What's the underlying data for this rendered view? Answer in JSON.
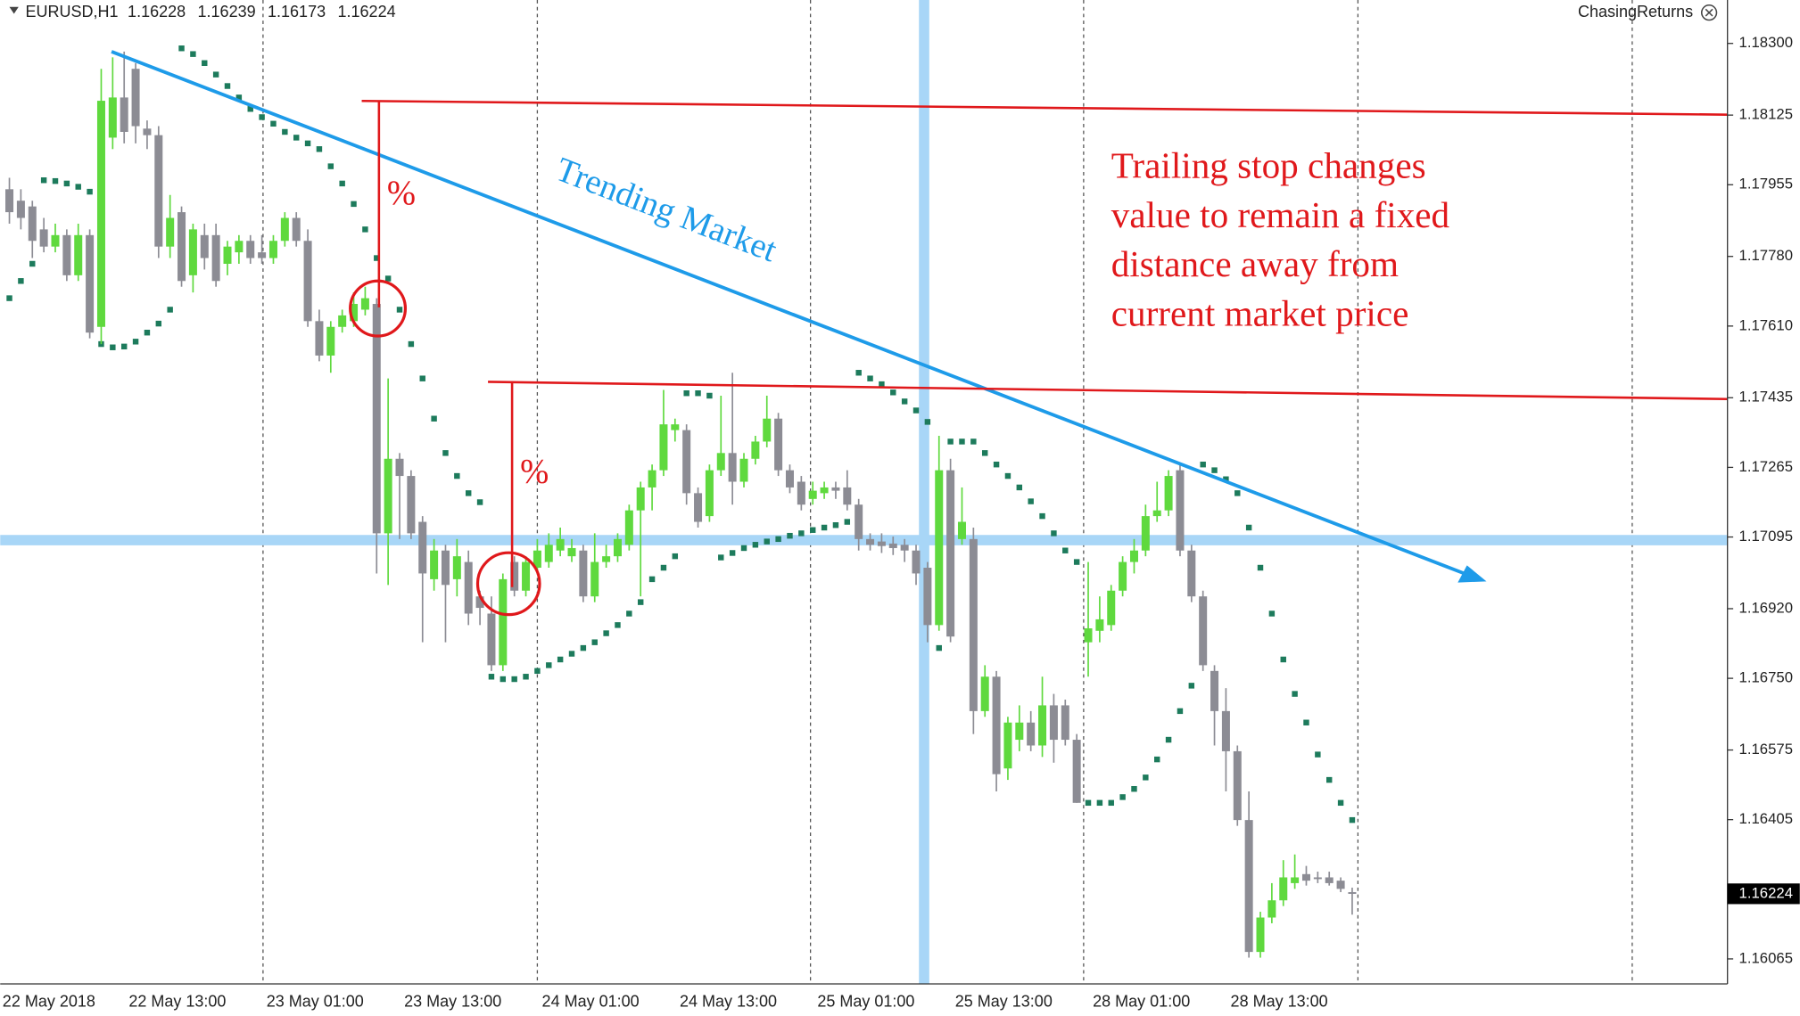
{
  "header": {
    "symbol": "EURUSD,H1",
    "prices": [
      "1.16228",
      "1.16239",
      "1.16173",
      "1.16224"
    ],
    "indicator": "ChasingReturns"
  },
  "annotations": {
    "trend_label": "Trending Market",
    "percent_1": "%",
    "percent_2": "%",
    "note": [
      "Trailing stop changes",
      "value to remain a fixed",
      "distance away from",
      "current market price"
    ]
  },
  "chart_data": {
    "type": "candlestick",
    "categories": [
      "22 May 2018",
      null,
      null,
      null,
      null,
      null,
      null,
      null,
      null,
      null,
      null,
      "22 May 13:00",
      null,
      null,
      null,
      null,
      null,
      null,
      null,
      null,
      null,
      null,
      null,
      "23 May 01:00",
      null,
      null,
      null,
      null,
      null,
      null,
      null,
      null,
      null,
      null,
      null,
      "23 May 13:00",
      null,
      null,
      null,
      null,
      null,
      null,
      null,
      null,
      null,
      null,
      null,
      "24 May 01:00",
      null,
      null,
      null,
      null,
      null,
      null,
      null,
      null,
      null,
      null,
      null,
      "24 May 13:00",
      null,
      null,
      null,
      null,
      null,
      null,
      null,
      null,
      null,
      null,
      null,
      "25 May 01:00",
      null,
      null,
      null,
      null,
      null,
      null,
      null,
      null,
      null,
      null,
      null,
      "25 May 13:00",
      null,
      null,
      null,
      null,
      null,
      null,
      null,
      null,
      null,
      null,
      null,
      "28 May 01:00",
      null,
      null,
      null,
      null,
      null,
      null,
      null,
      null,
      null,
      null,
      null,
      "28 May 13:00",
      null,
      null,
      null,
      null,
      null,
      null,
      null,
      null,
      null,
      null
    ],
    "up_color": "#5fd93e",
    "down_color": "#8c8c94",
    "ohlc": [
      [
        1.17944,
        1.17972,
        1.1786,
        1.17888
      ],
      [
        1.17916,
        1.17944,
        1.17846,
        1.17874
      ],
      [
        1.17902,
        1.17916,
        1.17776,
        1.17818
      ],
      [
        1.17846,
        1.17874,
        1.1779,
        1.17804
      ],
      [
        1.17804,
        1.1786,
        1.1779,
        1.17832
      ],
      [
        1.17832,
        1.17846,
        1.1772,
        1.17734
      ],
      [
        1.17734,
        1.1786,
        1.1772,
        1.17832
      ],
      [
        1.17832,
        1.17846,
        1.1758,
        1.17594
      ],
      [
        1.17608,
        1.18238,
        1.17566,
        1.1816
      ],
      [
        1.1807,
        1.18266,
        1.18042,
        1.18168
      ],
      [
        1.18168,
        1.1828,
        1.18056,
        1.18084
      ],
      [
        1.18238,
        1.18252,
        1.18056,
        1.18098
      ],
      [
        1.18092,
        1.18112,
        1.18042,
        1.18076
      ],
      [
        1.18076,
        1.18098,
        1.17776,
        1.17804
      ],
      [
        1.17804,
        1.1793,
        1.17776,
        1.17874
      ],
      [
        1.17888,
        1.17902,
        1.17706,
        1.1772
      ],
      [
        1.17734,
        1.1786,
        1.17692,
        1.17846
      ],
      [
        1.17832,
        1.1786,
        1.17748,
        1.17776
      ],
      [
        1.17832,
        1.1786,
        1.17706,
        1.1772
      ],
      [
        1.17762,
        1.17818,
        1.17734,
        1.17804
      ],
      [
        1.1779,
        1.17832,
        1.17762,
        1.17818
      ],
      [
        1.17818,
        1.17832,
        1.17762,
        1.17776
      ],
      [
        1.1779,
        1.17832,
        1.17762,
        1.17776
      ],
      [
        1.17776,
        1.17832,
        1.17762,
        1.17818
      ],
      [
        1.17818,
        1.17888,
        1.17804,
        1.17874
      ],
      [
        1.17874,
        1.17888,
        1.17804,
        1.17818
      ],
      [
        1.17818,
        1.17846,
        1.17608,
        1.17622
      ],
      [
        1.17622,
        1.1765,
        1.17524,
        1.17538
      ],
      [
        1.17538,
        1.17622,
        1.17496,
        1.17608
      ],
      [
        1.17608,
        1.1765,
        1.17594,
        1.17636
      ],
      [
        1.17622,
        1.17692,
        1.17608,
        1.17664
      ],
      [
        1.1765,
        1.17706,
        1.17636,
        1.17678
      ],
      [
        1.17664,
        1.17678,
        1.17006,
        1.17104
      ],
      [
        1.17104,
        1.17482,
        1.16978,
        1.17286
      ],
      [
        1.17286,
        1.173,
        1.1709,
        1.17244
      ],
      [
        1.17244,
        1.17258,
        1.1709,
        1.17104
      ],
      [
        1.17132,
        1.17146,
        1.16838,
        1.17006
      ],
      [
        1.16992,
        1.1709,
        1.16964,
        1.17062
      ],
      [
        1.17062,
        1.17076,
        1.16838,
        1.16978
      ],
      [
        1.16992,
        1.1709,
        1.1695,
        1.17048
      ],
      [
        1.17034,
        1.17062,
        1.1688,
        1.16908
      ],
      [
        1.1695,
        1.16964,
        1.1688,
        1.16922
      ],
      [
        1.16908,
        1.1695,
        1.16768,
        1.16782
      ],
      [
        1.16782,
        1.17006,
        1.16768,
        1.16992
      ],
      [
        1.17034,
        1.17048,
        1.1695,
        1.16964
      ],
      [
        1.16964,
        1.17048,
        1.1695,
        1.17034
      ],
      [
        1.1702,
        1.1709,
        1.17006,
        1.17062
      ],
      [
        1.17034,
        1.17104,
        1.1702,
        1.17076
      ],
      [
        1.17062,
        1.17118,
        1.17048,
        1.1709
      ],
      [
        1.17048,
        1.1709,
        1.17034,
        1.17068
      ],
      [
        1.17062,
        1.17076,
        1.16936,
        1.1695
      ],
      [
        1.1695,
        1.17104,
        1.16936,
        1.17034
      ],
      [
        1.17034,
        1.17076,
        1.1702,
        1.17048
      ],
      [
        1.17048,
        1.17104,
        1.17034,
        1.1709
      ],
      [
        1.17076,
        1.17174,
        1.17062,
        1.1716
      ],
      [
        1.1716,
        1.1723,
        1.1695,
        1.17216
      ],
      [
        1.17216,
        1.17272,
        1.1716,
        1.17258
      ],
      [
        1.17258,
        1.17454,
        1.17244,
        1.1737
      ],
      [
        1.17356,
        1.17384,
        1.17328,
        1.1737
      ],
      [
        1.17356,
        1.1737,
        1.17174,
        1.17202
      ],
      [
        1.17202,
        1.17216,
        1.17118,
        1.17132
      ],
      [
        1.17146,
        1.17272,
        1.17132,
        1.17258
      ],
      [
        1.17258,
        1.1744,
        1.17244,
        1.173
      ],
      [
        1.173,
        1.17496,
        1.17174,
        1.1723
      ],
      [
        1.1723,
        1.173,
        1.17216,
        1.17286
      ],
      [
        1.17286,
        1.17342,
        1.17272,
        1.17328
      ],
      [
        1.17328,
        1.1744,
        1.17314,
        1.17384
      ],
      [
        1.17384,
        1.17398,
        1.17244,
        1.17258
      ],
      [
        1.17258,
        1.17272,
        1.17202,
        1.17216
      ],
      [
        1.1723,
        1.17244,
        1.1716,
        1.17174
      ],
      [
        1.17188,
        1.1723,
        1.17174,
        1.17208
      ],
      [
        1.17202,
        1.1723,
        1.17188,
        1.17216
      ],
      [
        1.17216,
        1.1723,
        1.17188,
        1.17208
      ],
      [
        1.17216,
        1.17258,
        1.1716,
        1.17174
      ],
      [
        1.17174,
        1.17188,
        1.17062,
        1.1709
      ],
      [
        1.1709,
        1.17104,
        1.17062,
        1.17076
      ],
      [
        1.17084,
        1.17104,
        1.17056,
        1.17073
      ],
      [
        1.17079,
        1.17096,
        1.17051,
        1.17068
      ],
      [
        1.17076,
        1.1709,
        1.17034,
        1.17062
      ],
      [
        1.17062,
        1.17076,
        1.16978,
        1.17006
      ],
      [
        1.1702,
        1.17034,
        1.16838,
        1.1688
      ],
      [
        1.1688,
        1.17342,
        1.16866,
        1.17258
      ],
      [
        1.17258,
        1.17286,
        1.16838,
        1.16852
      ],
      [
        1.1709,
        1.17216,
        1.17076,
        1.17132
      ],
      [
        1.1709,
        1.17118,
        1.16614,
        1.1667
      ],
      [
        1.1667,
        1.16782,
        1.16656,
        1.16754
      ],
      [
        1.16754,
        1.16768,
        1.16474,
        1.16516
      ],
      [
        1.1653,
        1.16656,
        1.16502,
        1.16642
      ],
      [
        1.166,
        1.16684,
        1.16572,
        1.16642
      ],
      [
        1.16642,
        1.1667,
        1.16572,
        1.16586
      ],
      [
        1.16586,
        1.16754,
        1.16558,
        1.16684
      ],
      [
        1.16684,
        1.16712,
        1.16544,
        1.166
      ],
      [
        1.16684,
        1.16698,
        1.16586,
        1.166
      ],
      [
        1.166,
        1.16614,
        1.16446,
        1.16446
      ],
      [
        1.16838,
        1.17034,
        1.16754,
        1.16872
      ],
      [
        1.16866,
        1.1695,
        1.16838,
        1.16894
      ],
      [
        1.1688,
        1.16978,
        1.16866,
        1.16964
      ],
      [
        1.16964,
        1.17048,
        1.1695,
        1.17034
      ],
      [
        1.17034,
        1.1709,
        1.17006,
        1.17062
      ],
      [
        1.17062,
        1.17174,
        1.17048,
        1.17146
      ],
      [
        1.17146,
        1.1723,
        1.17132,
        1.1716
      ],
      [
        1.1716,
        1.17258,
        1.17146,
        1.17244
      ],
      [
        1.17258,
        1.17272,
        1.17048,
        1.17062
      ],
      [
        1.17062,
        1.17076,
        1.16936,
        1.1695
      ],
      [
        1.1695,
        1.16964,
        1.16768,
        1.16782
      ],
      [
        1.16768,
        1.16782,
        1.16586,
        1.1667
      ],
      [
        1.1667,
        1.16726,
        1.16474,
        1.16572
      ],
      [
        1.16572,
        1.16586,
        1.1639,
        1.16404
      ],
      [
        1.16404,
        1.16474,
        1.16068,
        1.16082
      ],
      [
        1.16082,
        1.1618,
        1.16068,
        1.16166
      ],
      [
        1.16166,
        1.1625,
        1.16152,
        1.16208
      ],
      [
        1.16208,
        1.16306,
        1.16194,
        1.16264
      ],
      [
        1.1625,
        1.1632,
        1.16236,
        1.16264
      ],
      [
        1.16272,
        1.16292,
        1.16244,
        1.16256
      ],
      [
        1.16264,
        1.16278,
        1.1625,
        1.16261
      ],
      [
        1.16264,
        1.16278,
        1.16244,
        1.1625
      ],
      [
        1.16256,
        1.16264,
        1.16228,
        1.16236
      ],
      [
        1.16228,
        1.16239,
        1.16173,
        1.16224
      ]
    ],
    "sar": {
      "color": "#1d7b5c",
      "values": [
        1.17678,
        1.1772,
        1.17762,
        1.17966,
        1.17964,
        1.17958,
        1.1795,
        1.17938,
        1.17566,
        1.17558,
        1.1756,
        1.17572,
        1.17594,
        1.17616,
        1.1765,
        1.18288,
        1.18274,
        1.18252,
        1.18224,
        1.18196,
        1.18168,
        1.1814,
        1.1812,
        1.18104,
        1.18084,
        1.1807,
        1.18056,
        1.18042,
        1.18,
        1.17958,
        1.17908,
        1.17846,
        1.17776,
        1.17726,
        1.1765,
        1.17566,
        1.17482,
        1.17384,
        1.173,
        1.17244,
        1.17202,
        1.1718,
        1.16754,
        1.16748,
        1.16748,
        1.16754,
        1.16768,
        1.16782,
        1.16796,
        1.1681,
        1.16824,
        1.16838,
        1.1686,
        1.1688,
        1.16908,
        1.16936,
        1.16992,
        1.1702,
        1.17048,
        1.17446,
        1.17446,
        1.1744,
        1.17045,
        1.17056,
        1.17068,
        1.17076,
        1.17084,
        1.1709,
        1.17098,
        1.17104,
        1.17112,
        1.17118,
        1.17124,
        1.17132,
        1.17496,
        1.17482,
        1.17468,
        1.17448,
        1.17426,
        1.17404,
        1.17376,
        1.16824,
        1.17328,
        1.17328,
        1.17328,
        1.173,
        1.17272,
        1.17244,
        1.17216,
        1.17182,
        1.17146,
        1.17104,
        1.17062,
        1.17034,
        1.16446,
        1.16446,
        1.16446,
        1.1646,
        1.1648,
        1.16508,
        1.16552,
        1.166,
        1.1667,
        1.16732,
        1.17272,
        1.17258,
        1.17236,
        1.17202,
        1.17118,
        1.1702,
        1.16908,
        1.16796,
        1.16712,
        1.16642,
        1.16564,
        1.16502,
        1.16446,
        1.16404
      ]
    },
    "ylim": [
      1.16004,
      1.18406
    ],
    "yticks": [
      {
        "value": 1.183,
        "label": "1.18300"
      },
      1.18125,
      1.17955,
      {
        "value": 1.1778,
        "label": "1.17780"
      },
      {
        "value": 1.1761,
        "label": "1.17610"
      },
      1.17435,
      1.17265,
      1.17095,
      {
        "value": 1.1692,
        "label": "1.16920"
      },
      {
        "value": 1.1675,
        "label": "1.16750"
      },
      1.16575,
      1.16405,
      1.16065
    ],
    "current_price": {
      "value": 1.16224,
      "label": "1.16224"
    }
  }
}
